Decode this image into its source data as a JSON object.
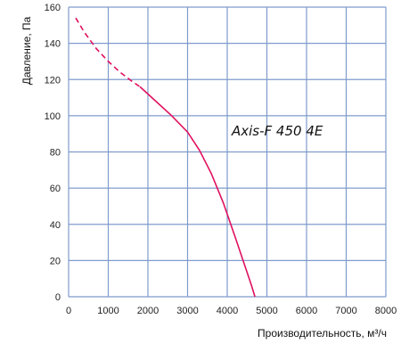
{
  "chart_data": {
    "type": "line",
    "title": "",
    "annotation": "Axis-F 450 4E",
    "xlabel": "Производительность, м³/ч",
    "ylabel": "Давление, Па",
    "xlim": [
      0,
      8000
    ],
    "ylim": [
      0,
      160
    ],
    "x_ticks": [
      0,
      1000,
      2000,
      3000,
      4000,
      5000,
      6000,
      7000,
      8000
    ],
    "y_ticks": [
      0,
      20,
      40,
      60,
      80,
      100,
      120,
      140,
      160
    ],
    "grid": true,
    "series": [
      {
        "color": "#e0115f",
        "dashed_segment": {
          "x": [
            180,
            400,
            700,
            1000,
            1300,
            1600,
            1800
          ],
          "y": [
            154,
            146,
            137,
            130,
            124,
            119,
            116
          ]
        },
        "solid_segment": {
          "x": [
            1800,
            2200,
            2600,
            3000,
            3300,
            3600,
            3900,
            4200,
            4400,
            4600,
            4700
          ],
          "y": [
            116,
            108,
            100,
            91,
            81,
            68,
            52,
            33,
            20,
            7,
            0
          ]
        }
      }
    ]
  }
}
